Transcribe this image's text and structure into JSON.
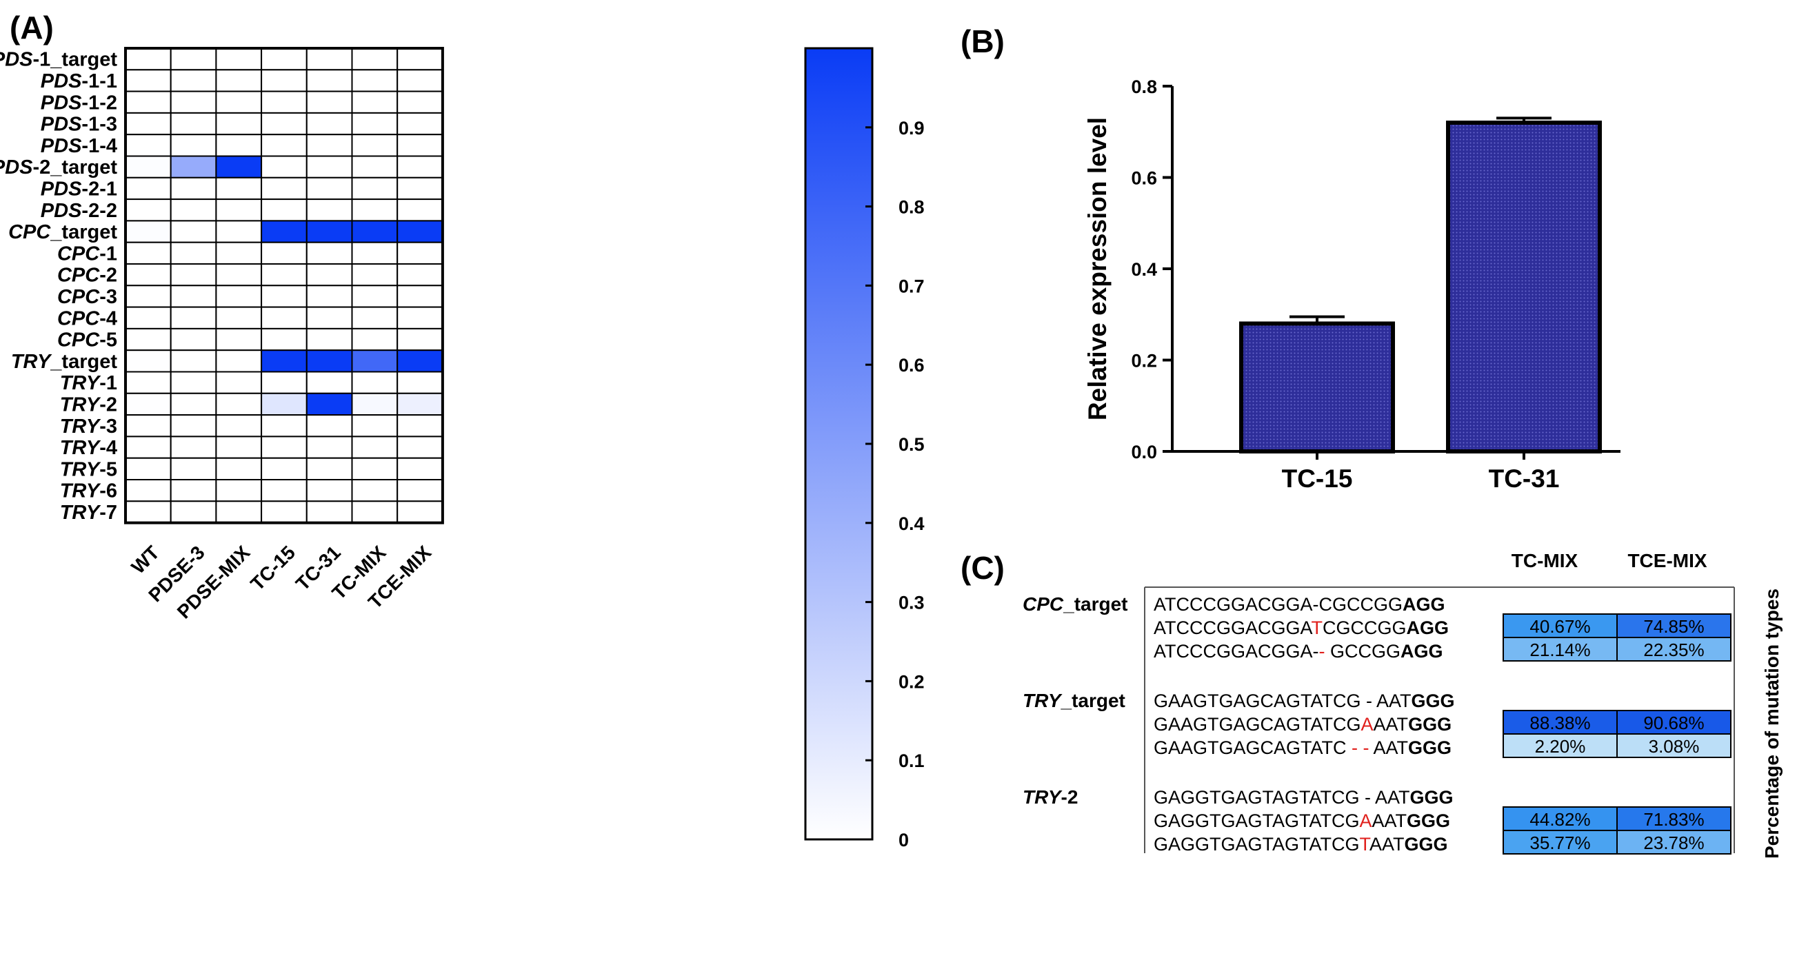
{
  "panels": {
    "A": "(A)",
    "B": "(B)",
    "C": "(C)"
  },
  "heatmap": {
    "type": "heatmap",
    "columns": [
      "WT",
      "PDSE-3",
      "PDSE-MIX",
      "TC-15",
      "TC-31",
      "TC-MIX",
      "TCE-MIX"
    ],
    "rows": [
      {
        "gene": "PDS",
        "suffix": "-1_target"
      },
      {
        "gene": "PDS",
        "suffix": "-1-1"
      },
      {
        "gene": "PDS",
        "suffix": "-1-2"
      },
      {
        "gene": "PDS",
        "suffix": "-1-3"
      },
      {
        "gene": "PDS",
        "suffix": "-1-4"
      },
      {
        "gene": "PDS",
        "suffix": "-2_target"
      },
      {
        "gene": "PDS",
        "suffix": "-2-1"
      },
      {
        "gene": "PDS",
        "suffix": "-2-2"
      },
      {
        "gene": "CPC",
        "suffix": "_target"
      },
      {
        "gene": "CPC",
        "suffix": "-1"
      },
      {
        "gene": "CPC",
        "suffix": "-2"
      },
      {
        "gene": "CPC",
        "suffix": "-3"
      },
      {
        "gene": "CPC",
        "suffix": "-4"
      },
      {
        "gene": "CPC",
        "suffix": "-5"
      },
      {
        "gene": "TRY",
        "suffix": "_target"
      },
      {
        "gene": "TRY",
        "suffix": "-1"
      },
      {
        "gene": "TRY",
        "suffix": "-2"
      },
      {
        "gene": "TRY",
        "suffix": "-3"
      },
      {
        "gene": "TRY",
        "suffix": "-4"
      },
      {
        "gene": "TRY",
        "suffix": "-5"
      },
      {
        "gene": "TRY",
        "suffix": "-6"
      },
      {
        "gene": "TRY",
        "suffix": "-7"
      }
    ],
    "values": [
      [
        0,
        0,
        0,
        0,
        0,
        0,
        0
      ],
      [
        0,
        0,
        0,
        0,
        0,
        0,
        0
      ],
      [
        0,
        0,
        0,
        0,
        0,
        0,
        0
      ],
      [
        0,
        0,
        0,
        0,
        0,
        0,
        0
      ],
      [
        0,
        0,
        0,
        0,
        0,
        0,
        0
      ],
      [
        0.01,
        0.4,
        0.93,
        0,
        0,
        0,
        0
      ],
      [
        0,
        0,
        0,
        0,
        0,
        0,
        0
      ],
      [
        0,
        0,
        0,
        0,
        0,
        0,
        0
      ],
      [
        0.01,
        0,
        0,
        0.93,
        0.93,
        0.93,
        0.93
      ],
      [
        0,
        0,
        0,
        0,
        0,
        0,
        0
      ],
      [
        0,
        0,
        0,
        0,
        0,
        0,
        0
      ],
      [
        0,
        0,
        0,
        0,
        0,
        0,
        0
      ],
      [
        0,
        0,
        0,
        0,
        0,
        0,
        0
      ],
      [
        0,
        0,
        0,
        0,
        0,
        0,
        0
      ],
      [
        0.005,
        0,
        0,
        0.93,
        0.93,
        0.72,
        0.93
      ],
      [
        0,
        0,
        0,
        0,
        0,
        0,
        0
      ],
      [
        0.005,
        0,
        0,
        0.12,
        0.93,
        0.03,
        0.07
      ],
      [
        0,
        0,
        0,
        0,
        0,
        0,
        0
      ],
      [
        0,
        0,
        0,
        0,
        0,
        0,
        0
      ],
      [
        0,
        0,
        0,
        0,
        0,
        0,
        0
      ],
      [
        0,
        0,
        0,
        0,
        0,
        0,
        0
      ],
      [
        0,
        0,
        0,
        0,
        0,
        0,
        0
      ]
    ],
    "colorbar": {
      "range": [
        0,
        1
      ],
      "ticks": [
        0,
        0.1,
        0.2,
        0.3,
        0.4,
        0.5,
        0.6,
        0.7,
        0.8,
        0.9
      ],
      "tick_labels": [
        "0",
        "0.1",
        "0.2",
        "0.3",
        "0.4",
        "0.5",
        "0.6",
        "0.7",
        "0.8",
        "0.9"
      ],
      "color_low": "#ffffff",
      "color_high": "#0a3cf5"
    }
  },
  "chart_data": {
    "type": "bar",
    "categories": [
      "TC-15",
      "TC-31"
    ],
    "values": [
      0.28,
      0.72
    ],
    "errors": [
      0.015,
      0.01
    ],
    "ylabel": "Relative expression level",
    "xlabel": "",
    "ylim": [
      0,
      0.8
    ],
    "yticks": [
      "0.0",
      "0.2",
      "0.4",
      "0.6",
      "0.8"
    ],
    "bar_color": "#2a2a8c"
  },
  "mutations": {
    "headers": [
      "TC-MIX",
      "TCE-MIX"
    ],
    "side_label": "Percentage of mutation types",
    "groups": [
      {
        "gene": "CPC",
        "suffix": "_target",
        "seqs": [
          {
            "pre": "ATCCCGGACGGA-",
            "mut": "",
            "post": "CGCCGG",
            "pam": "AGG",
            "values": null
          },
          {
            "pre": "ATCCCGGACGGA",
            "mut": "T",
            "post": "CGCCGG",
            "pam": "AGG",
            "values": [
              "40.67%",
              "74.85%"
            ],
            "colors": [
              "#3a98f0",
              "#2a75ec"
            ]
          },
          {
            "pre": "ATCCCGGACGGA-",
            "mut": "-",
            "post": " GCCGG",
            "pam": "AGG",
            "values": [
              "21.14%",
              "22.35%"
            ],
            "colors": [
              "#77b9f3",
              "#74b7f3"
            ]
          }
        ]
      },
      {
        "gene": "TRY",
        "suffix": "_target",
        "seqs": [
          {
            "pre": "GAAGTGAGCAGTATCG -",
            "mut": "",
            "post": " AAT",
            "pam": "GGG",
            "values": null
          },
          {
            "pre": "GAAGTGAGCAGTATCG",
            "mut": "A",
            "post": "AAT",
            "pam": "GGG",
            "values": [
              "88.38%",
              "90.68%"
            ],
            "colors": [
              "#1a5ce8",
              "#1859e8"
            ]
          },
          {
            "pre": "GAAGTGAGCAGTATC ",
            "mut": "- -",
            "post": " AAT",
            "pam": "GGG",
            "values": [
              "2.20%",
              "3.08%"
            ],
            "colors": [
              "#bddff7",
              "#bbdef7"
            ]
          }
        ]
      },
      {
        "gene": "TRY",
        "suffix": "-2",
        "seqs": [
          {
            "pre": "GAGGTGAGTAGTATCG -",
            "mut": "",
            "post": " AAT",
            "pam": "GGG",
            "values": null
          },
          {
            "pre": "GAGGTGAGTAGTATCG",
            "mut": "A",
            "post": "AAT",
            "pam": "GGG",
            "values": [
              "44.82%",
              "71.83%"
            ],
            "colors": [
              "#3593f0",
              "#2678ec"
            ]
          },
          {
            "pre": "GAGGTGAGTAGTATCG",
            "mut": "T",
            "post": "AAT",
            "pam": "GGG",
            "values": [
              "35.77%",
              "23.78%"
            ],
            "colors": [
              "#4aa3f1",
              "#6cb3f3"
            ]
          }
        ]
      }
    ]
  }
}
